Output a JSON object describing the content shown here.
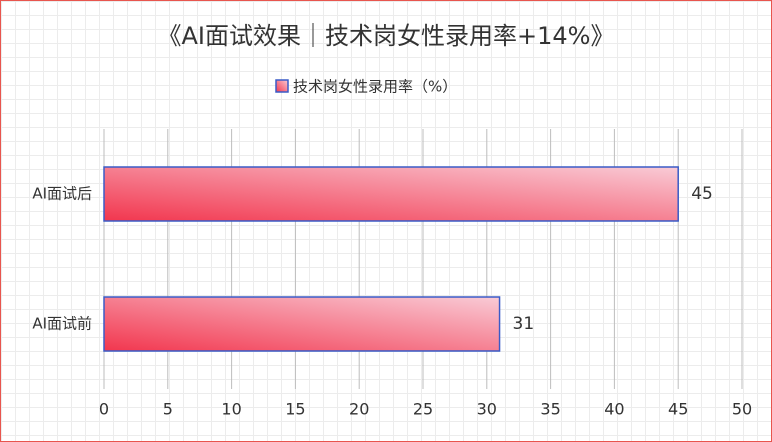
{
  "chart_data": {
    "type": "hbar",
    "title": "《AI面试效果｜技术岗女性录用率+14%》",
    "categories": [
      "AI面试后",
      "AI面试前"
    ],
    "series": [
      {
        "name": "技术岗女性录用率（%）",
        "color": "#f2364e",
        "color_end": "#f9cbd6",
        "border": "#3a5bc7",
        "values": [
          45,
          31
        ]
      }
    ],
    "xlim": [
      0,
      50
    ],
    "xticks": [
      0,
      5,
      10,
      15,
      20,
      25,
      30,
      35,
      40,
      45,
      50
    ],
    "grid": true
  }
}
